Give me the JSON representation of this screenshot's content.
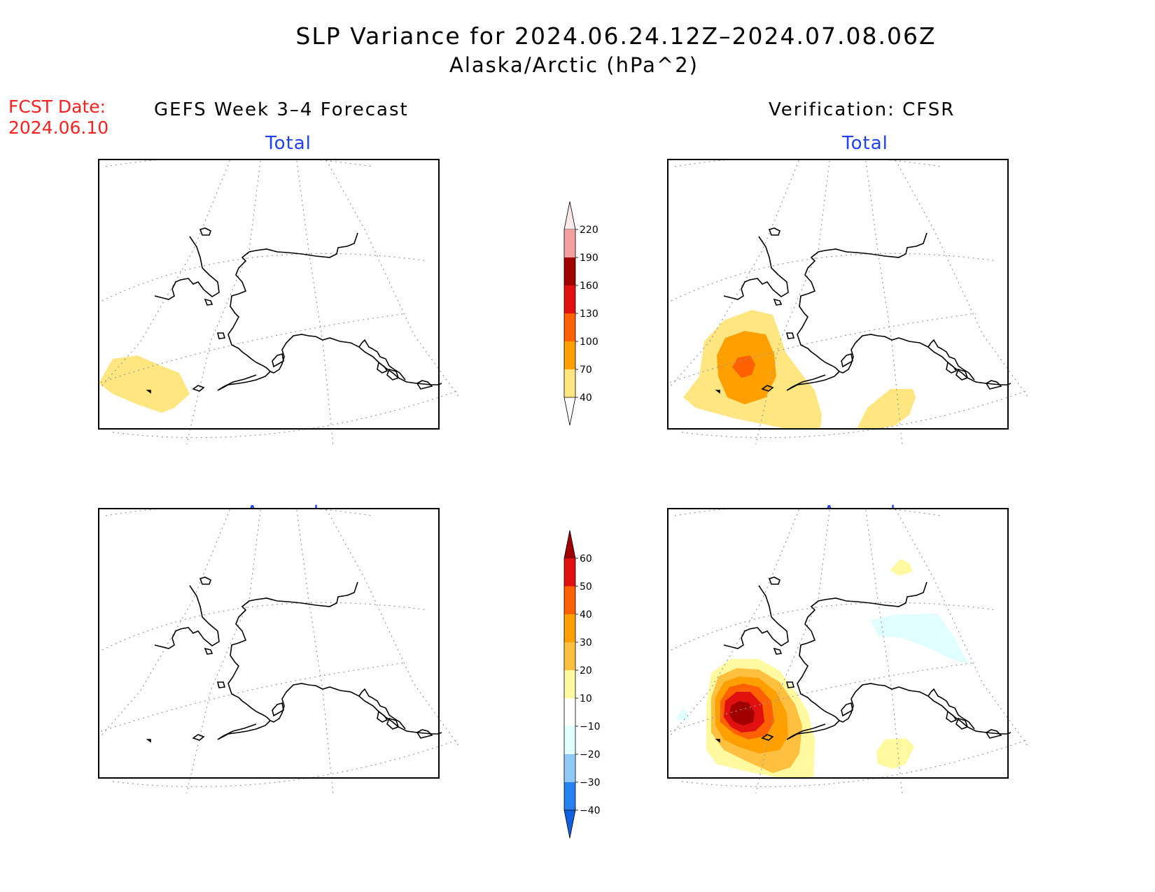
{
  "title": "SLP Variance for 2024.06.24.12Z–2024.07.08.06Z",
  "subtitle": "Alaska/Arctic (hPa^2)",
  "fcst_label": "FCST Date:",
  "fcst_date": "2024.06.10",
  "left_heading": "GEFS Week 3–4 Forecast",
  "right_heading": "Verification: CFSR",
  "panels": {
    "forecast_total": {
      "label": "Total"
    },
    "verification_total": {
      "label": "Total"
    },
    "forecast_anomaly": {
      "label": "Anomaly"
    },
    "verification_anomaly": {
      "label": "Anomaly"
    }
  },
  "total_colorbar": {
    "levels": [
      40,
      70,
      100,
      130,
      160,
      190,
      220
    ],
    "colors": [
      "#ffe680",
      "#ffa000",
      "#ff6000",
      "#e01010",
      "#a00000",
      "#f4a0a0",
      "#fde8e8"
    ]
  },
  "anomaly_colorbar": {
    "levels": [
      -40,
      -30,
      -20,
      -10,
      10,
      20,
      30,
      40,
      50,
      60
    ],
    "colors": [
      "#1060e0",
      "#2880ee",
      "#90c8f8",
      "#e0ffff",
      "#ffffff",
      "#fffaa0",
      "#ffc040",
      "#ffa000",
      "#ff6000",
      "#e01010",
      "#a00000"
    ]
  },
  "colors": {
    "title_accent": "#2040ff",
    "fcst": "#ff2020"
  }
}
